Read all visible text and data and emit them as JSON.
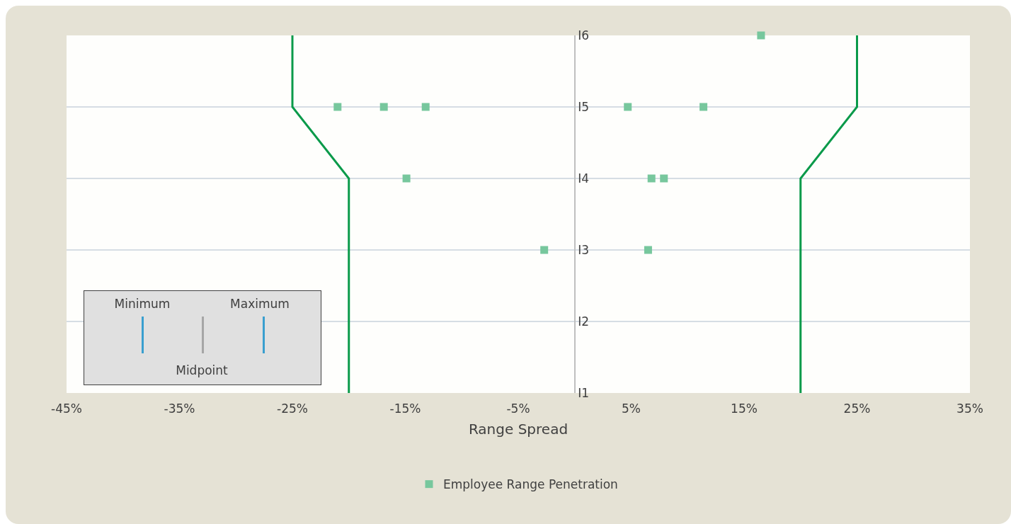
{
  "chart_data": {
    "type": "scatter",
    "xlabel": "Range Spread",
    "xlim": [
      -45,
      35
    ],
    "xticks": [
      {
        "value": -45,
        "label": "-45%"
      },
      {
        "value": -35,
        "label": "-35%"
      },
      {
        "value": -25,
        "label": "-25%"
      },
      {
        "value": -15,
        "label": "-15%"
      },
      {
        "value": -5,
        "label": "-5%"
      },
      {
        "value": 5,
        "label": "5%"
      },
      {
        "value": 15,
        "label": "15%"
      },
      {
        "value": 25,
        "label": "25%"
      },
      {
        "value": 35,
        "label": "35%"
      }
    ],
    "orientation": "horizontal",
    "categories": [
      "I6",
      "I5",
      "I4",
      "I3",
      "I2",
      "I1"
    ],
    "series": [
      {
        "type": "line",
        "color": "#0a9a4a",
        "values": [
          -25,
          -25,
          -20,
          -20,
          -20,
          -20
        ]
      },
      {
        "type": "line",
        "color": "#0a9a4a",
        "values": [
          25,
          25,
          20,
          20,
          20,
          20
        ]
      },
      {
        "name": "Employee Range Penetration",
        "color": "#77c79d",
        "marker": "square",
        "x": [
          "I6",
          "I5",
          "I5",
          "I5",
          "I5",
          "I5",
          "I4",
          "I4",
          "I4",
          "I3",
          "I3"
        ],
        "values": [
          16.5,
          -21,
          -16.9,
          -13.2,
          4.7,
          11.4,
          -14.9,
          6.8,
          7.9,
          -2.7,
          6.5
        ]
      }
    ],
    "annotations": [
      "Minimum",
      "Maximum",
      "Midpoint"
    ],
    "grid": "y",
    "legend": "bottom"
  }
}
